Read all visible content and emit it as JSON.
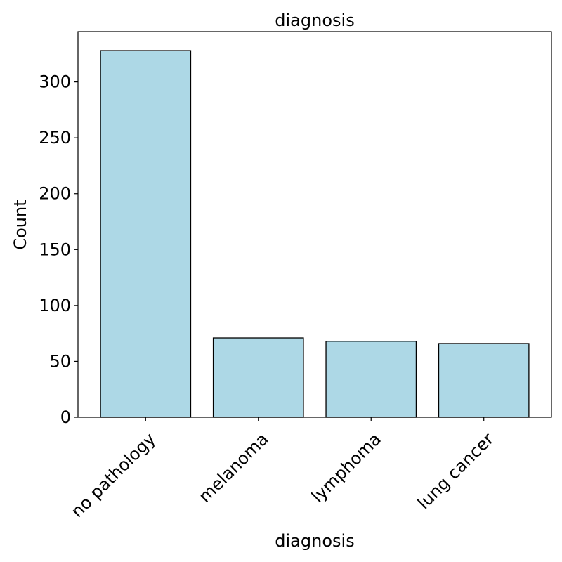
{
  "chart_data": {
    "type": "bar",
    "title": "diagnosis",
    "xlabel": "diagnosis",
    "ylabel": "Count",
    "categories": [
      "no pathology",
      "melanoma",
      "lymphoma",
      "lung cancer"
    ],
    "values": [
      328,
      71,
      68,
      66
    ],
    "ylim": [
      0,
      345
    ],
    "yticks": [
      0,
      50,
      100,
      150,
      200,
      250,
      300
    ],
    "grid": false,
    "legend": "none",
    "colors": {
      "bar_fill": "#add8e6",
      "bar_edge": "#000000"
    }
  }
}
